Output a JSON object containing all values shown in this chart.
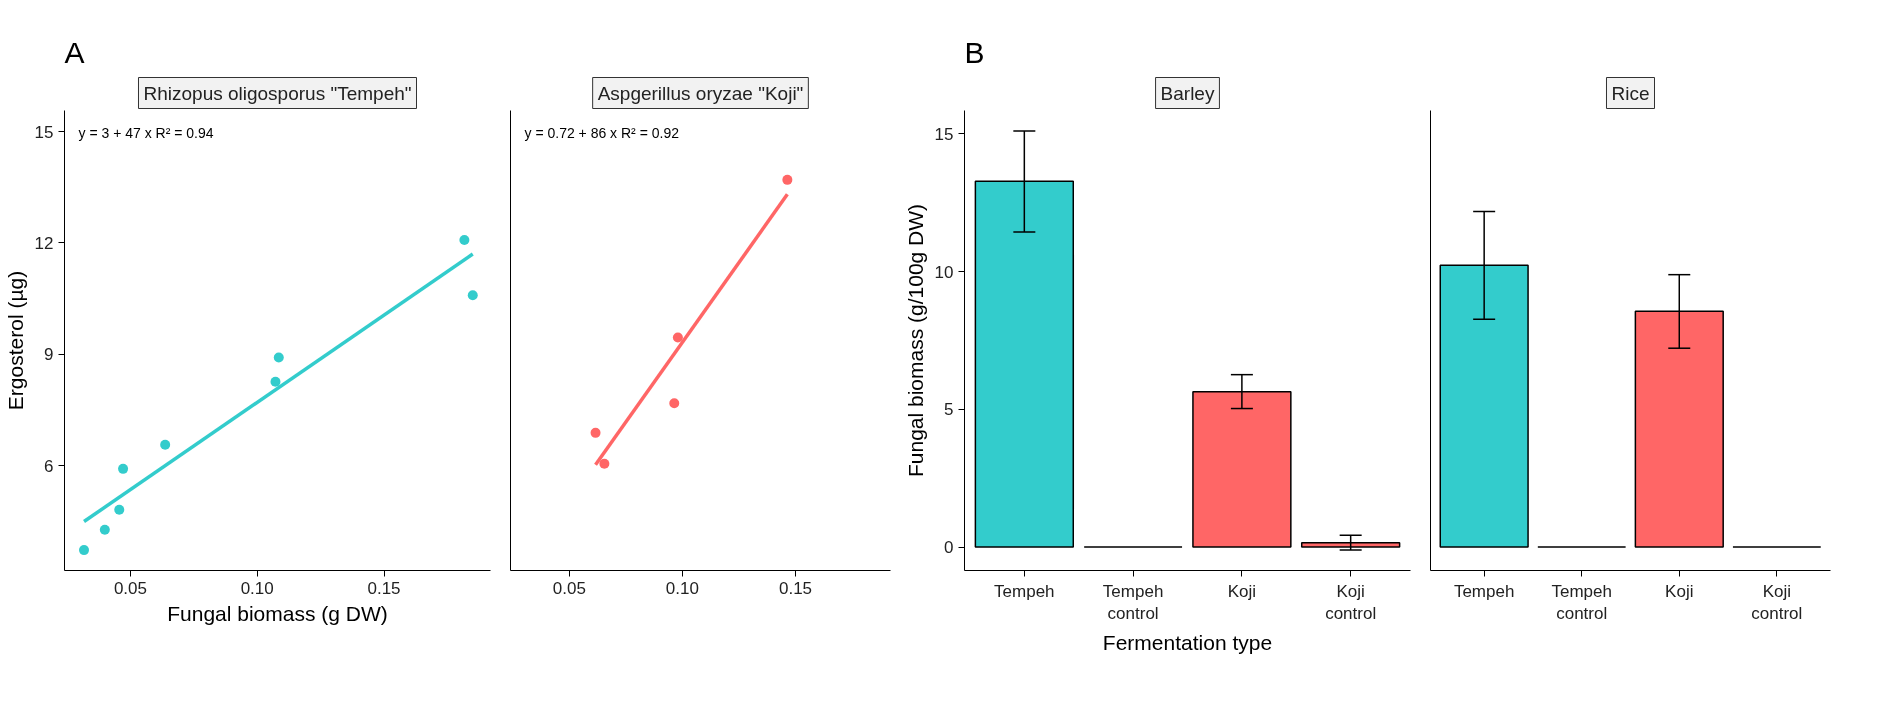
{
  "chart_data": [
    {
      "type": "scatter",
      "title": "A",
      "subtitle": "Rhizopus oligosporus \"Tempeh\"",
      "xlabel": "Fungal biomass (g DW)",
      "ylabel": "Ergosterol (µg)",
      "annotations": [
        "y = 3 + 47 x    R² = 0.94"
      ],
      "grid": false,
      "xlim": [
        0.024,
        0.192
      ],
      "ylim": [
        3.17,
        15.57
      ],
      "xticks": [
        {
          "value": 0.05,
          "label": "0.05"
        },
        {
          "value": 0.1,
          "label": "0.10"
        },
        {
          "value": 0.15,
          "label": "0.15"
        }
      ],
      "yticks": [
        6,
        9,
        12,
        15
      ],
      "series": [
        {
          "type": "scatter",
          "marker": "circle",
          "color": "#33cccc",
          "x": [
            0.0317,
            0.0399,
            0.0456,
            0.0471,
            0.0637,
            0.1072,
            0.1085,
            0.1817,
            0.185
          ],
          "values": [
            3.72,
            4.27,
            4.81,
            5.91,
            6.56,
            8.26,
            8.91,
            12.08,
            10.59
          ]
        },
        {
          "type": "line",
          "color": "#33cccc",
          "x": [
            0.0317,
            0.185
          ],
          "values": [
            4.49,
            11.7
          ]
        }
      ]
    },
    {
      "type": "scatter",
      "subtitle": "Aspgerillus oryzae \"Koji\"",
      "annotations": [
        "y = 0.72 + 86 x    R² = 0.92"
      ],
      "grid": false,
      "tick_labels": "x",
      "xlim": [
        0.024,
        0.192
      ],
      "ylim": [
        3.17,
        15.57
      ],
      "xticks": [
        {
          "value": 0.05,
          "label": "0.05"
        },
        {
          "value": 0.1,
          "label": "0.10"
        },
        {
          "value": 0.15,
          "label": "0.15"
        }
      ],
      "series": [
        {
          "type": "scatter",
          "marker": "circle",
          "color": "#ff6666",
          "x": [
            0.0616,
            0.0655,
            0.0964,
            0.098,
            0.1464
          ],
          "values": [
            6.88,
            6.05,
            7.68,
            9.45,
            13.7
          ]
        },
        {
          "type": "line",
          "color": "#ff6666",
          "x": [
            0.0616,
            0.1464
          ],
          "values": [
            6.02,
            13.31
          ]
        }
      ]
    },
    {
      "type": "bar",
      "title": "B",
      "subtitle": "Barley",
      "xlabel": "Fermentation type",
      "ylabel": "Fungal biomass (g/100g DW)",
      "grid": false,
      "ylim": [
        -0.85,
        15.85
      ],
      "yticks": [
        0,
        5,
        10,
        15
      ],
      "categories": [
        "Tempeh",
        "Tempeh control",
        "Koji",
        "Koji control"
      ],
      "values": [
        13.28,
        0,
        5.64,
        0.16
      ],
      "colors": [
        "#33cccc",
        "#000000",
        "#ff6666",
        "#ff6666"
      ],
      "errors": [
        [
          11.44,
          15.11
        ],
        null,
        [
          5.03,
          6.26
        ],
        [
          -0.11,
          0.43
        ]
      ]
    },
    {
      "type": "bar",
      "subtitle": "Rice",
      "grid": false,
      "tick_labels": "x",
      "ylim": [
        -0.85,
        15.85
      ],
      "categories": [
        "Tempeh",
        "Tempeh control",
        "Koji",
        "Koji control"
      ],
      "values": [
        10.23,
        0,
        8.56,
        0
      ],
      "colors": [
        "#33cccc",
        "#000000",
        "#ff6666",
        "#000000"
      ],
      "errors": [
        [
          8.27,
          12.18
        ],
        null,
        [
          7.22,
          9.89
        ],
        null
      ]
    }
  ]
}
